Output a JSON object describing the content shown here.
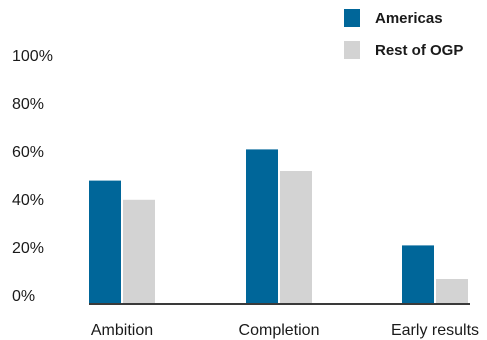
{
  "chart_data": {
    "type": "bar",
    "categories": [
      "Ambition",
      "Completion",
      "Early results"
    ],
    "series": [
      {
        "name": "Americas",
        "values": [
          0.51,
          0.64,
          0.24
        ],
        "color": "#006699"
      },
      {
        "name": "Rest of OGP",
        "values": [
          0.43,
          0.55,
          0.1
        ],
        "color": "#d3d3d3"
      }
    ],
    "ylim": [
      0,
      1.0
    ],
    "yticks": [
      {
        "value": 0,
        "label": "0%"
      },
      {
        "value": 0.2,
        "label": "20%"
      },
      {
        "value": 0.4,
        "label": "40%"
      },
      {
        "value": 0.6,
        "label": "60%"
      },
      {
        "value": 0.8,
        "label": "80%"
      },
      {
        "value": 1.0,
        "label": "100%"
      }
    ],
    "legend_position": "top-right",
    "grid": false
  }
}
